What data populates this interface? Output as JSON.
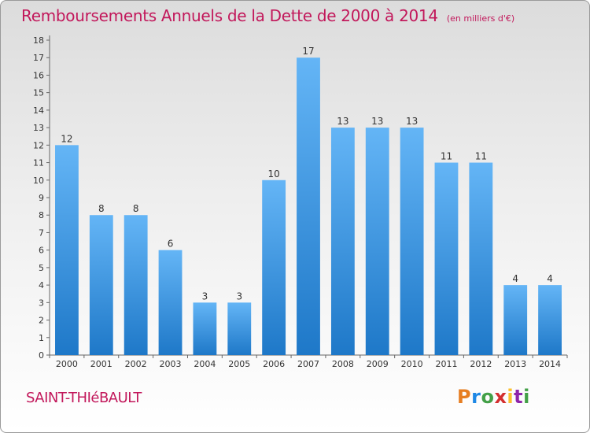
{
  "header": {
    "title": "Remboursements Annuels de la Dette de 2000 à 2014",
    "unit": "(en milliers d'€)"
  },
  "footer": {
    "town": "SAINT-THIéBAULT",
    "logo": [
      "P",
      "r",
      "o",
      "x",
      "i",
      "t",
      "i"
    ],
    "logo_colors": [
      "#e67e22",
      "#1e88e5",
      "#43a047",
      "#d32f2f",
      "#fbc02d",
      "#8e24aa",
      "#43a047"
    ]
  },
  "colors": {
    "title": "#c2185b",
    "bar_top": "#64b5f6",
    "bar_bottom": "#1e78c8"
  },
  "chart_data": {
    "type": "bar",
    "title": "Remboursements Annuels de la Dette de 2000 à 2014",
    "subtitle": "(en milliers d'€)",
    "xlabel": "",
    "ylabel": "",
    "categories": [
      "2000",
      "2001",
      "2002",
      "2003",
      "2004",
      "2005",
      "2006",
      "2007",
      "2008",
      "2009",
      "2010",
      "2011",
      "2012",
      "2013",
      "2014"
    ],
    "values": [
      12,
      8,
      8,
      6,
      3,
      3,
      10,
      17,
      13,
      13,
      13,
      11,
      11,
      4,
      4
    ],
    "ylim": [
      0,
      18
    ],
    "yticks": [
      "0",
      "1",
      "2",
      "3",
      "4",
      "5",
      "6",
      "7",
      "8",
      "9",
      "10",
      "11",
      "12",
      "13",
      "14",
      "15",
      "16",
      "17",
      "18"
    ],
    "grid": false
  }
}
